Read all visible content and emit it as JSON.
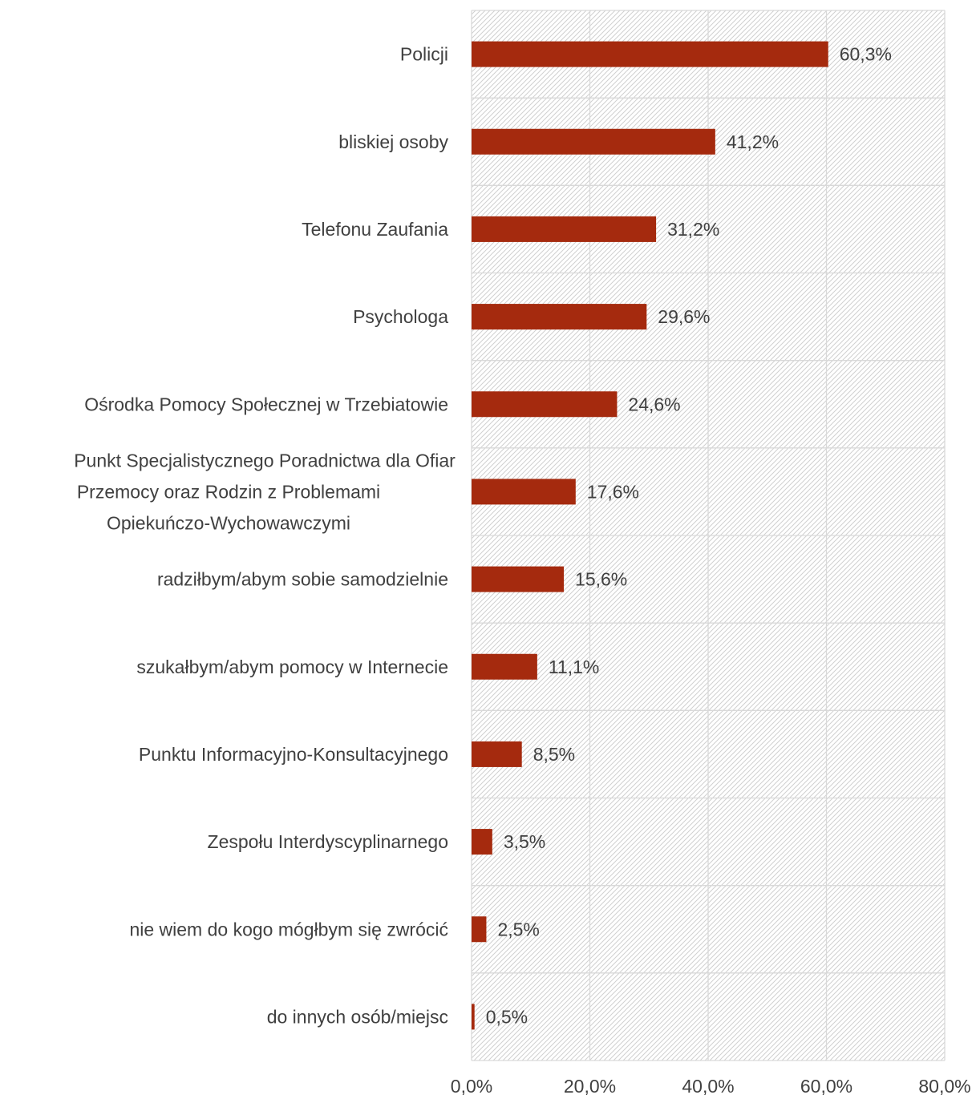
{
  "chart_data": {
    "type": "bar",
    "orientation": "horizontal",
    "categories": [
      "Policji",
      "bliskiej osoby",
      "Telefonu Zaufania",
      "Psychologa",
      "Ośrodka Pomocy Społecznej w Trzebiatowie",
      "Punkt Specjalistycznego Poradnictwa dla Ofiar Przemocy oraz Rodzin z Problemami Opiekuńczo-Wychowawczymi",
      "radziłbym/abym sobie samodzielnie",
      "szukałbym/abym pomocy w Internecie",
      "Punktu Informacyjno-Konsultacyjnego",
      "Zespołu Interdyscyplinarnego",
      "nie wiem do kogo mógłbym się zwrócić",
      "do innych osób/miejsc"
    ],
    "category_lines": [
      [
        "Policji"
      ],
      [
        "bliskiej osoby"
      ],
      [
        "Telefonu Zaufania"
      ],
      [
        "Psychologa"
      ],
      [
        "Ośrodka Pomocy Społecznej w Trzebiatowie"
      ],
      [
        "Punkt Specjalistycznego Poradnictwa dla Ofiar",
        "Przemocy oraz Rodzin z Problemami",
        "Opiekuńczo-Wychowawczymi"
      ],
      [
        "radziłbym/abym sobie samodzielnie"
      ],
      [
        "szukałbym/abym pomocy w Internecie"
      ],
      [
        "Punktu Informacyjno-Konsultacyjnego"
      ],
      [
        "Zespołu Interdyscyplinarnego"
      ],
      [
        "nie wiem do kogo mógłbym się zwrócić"
      ],
      [
        "do innych osób/miejsc"
      ]
    ],
    "values": [
      60.3,
      41.2,
      31.2,
      29.6,
      24.6,
      17.6,
      15.6,
      11.1,
      8.5,
      3.5,
      2.5,
      0.5
    ],
    "value_labels": [
      "60,3%",
      "41,2%",
      "31,2%",
      "29,6%",
      "24,6%",
      "17,6%",
      "15,6%",
      "11,1%",
      "8,5%",
      "3,5%",
      "2,5%",
      "0,5%"
    ],
    "x_ticks": [
      0,
      20,
      40,
      60,
      80
    ],
    "x_tick_labels": [
      "0,0%",
      "20,0%",
      "40,0%",
      "60,0%",
      "80,0%"
    ],
    "xlim": [
      0,
      80
    ],
    "grid": true,
    "title": "",
    "xlabel": "",
    "ylabel": "",
    "bar_color": "#A52A0E",
    "grid_color": "#D9D9D9",
    "hatch_color": "#D0D0D0"
  }
}
